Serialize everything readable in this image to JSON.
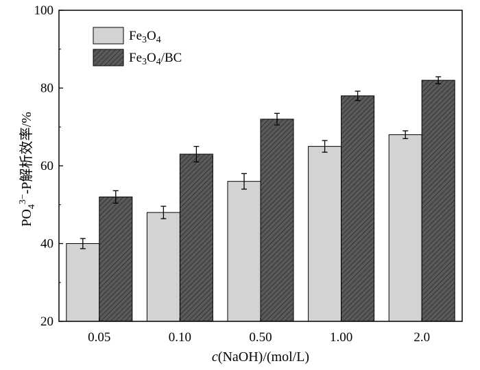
{
  "chart_data": {
    "type": "bar",
    "categories": [
      "0.05",
      "0.10",
      "0.50",
      "1.00",
      "2.0"
    ],
    "series": [
      {
        "name": "Fe3O4",
        "name_parts": [
          {
            "text": "Fe",
            "sub": false
          },
          {
            "text": "3",
            "sub": true
          },
          {
            "text": "O",
            "sub": false
          },
          {
            "text": "4",
            "sub": true
          }
        ],
        "values": [
          40,
          48,
          56,
          65,
          68
        ],
        "errors": [
          1.3,
          1.6,
          2.0,
          1.5,
          1.0
        ],
        "fill": "#d3d3d3",
        "pattern": "none"
      },
      {
        "name": "Fe3O4/BC",
        "name_parts": [
          {
            "text": "Fe",
            "sub": false
          },
          {
            "text": "3",
            "sub": true
          },
          {
            "text": "O",
            "sub": false
          },
          {
            "text": "4",
            "sub": true
          },
          {
            "text": "/BC",
            "sub": false
          }
        ],
        "values": [
          52,
          63,
          72,
          78,
          82
        ],
        "errors": [
          1.6,
          2.0,
          1.5,
          1.2,
          0.9
        ],
        "fill": "#555555",
        "pattern": "hatch"
      }
    ],
    "ylim": [
      20,
      100
    ],
    "yticks": [
      20,
      40,
      60,
      80,
      100
    ],
    "xlabel": "c(NaOH)/(mol/L)",
    "xlabel_parts": [
      {
        "text": "c",
        "italic": true
      },
      {
        "text": "(NaOH)/(mol/L)",
        "italic": false
      }
    ],
    "ylabel": "PO4 3- -P解析效率/%",
    "ylabel_parts": [
      {
        "text": "PO",
        "style": "normal"
      },
      {
        "text": "4",
        "style": "sub"
      },
      {
        "text": "3−",
        "style": "sup"
      },
      {
        "text": "-P解析效率/%",
        "style": "normal"
      }
    ],
    "legend_position": "top-left",
    "grid": false
  }
}
